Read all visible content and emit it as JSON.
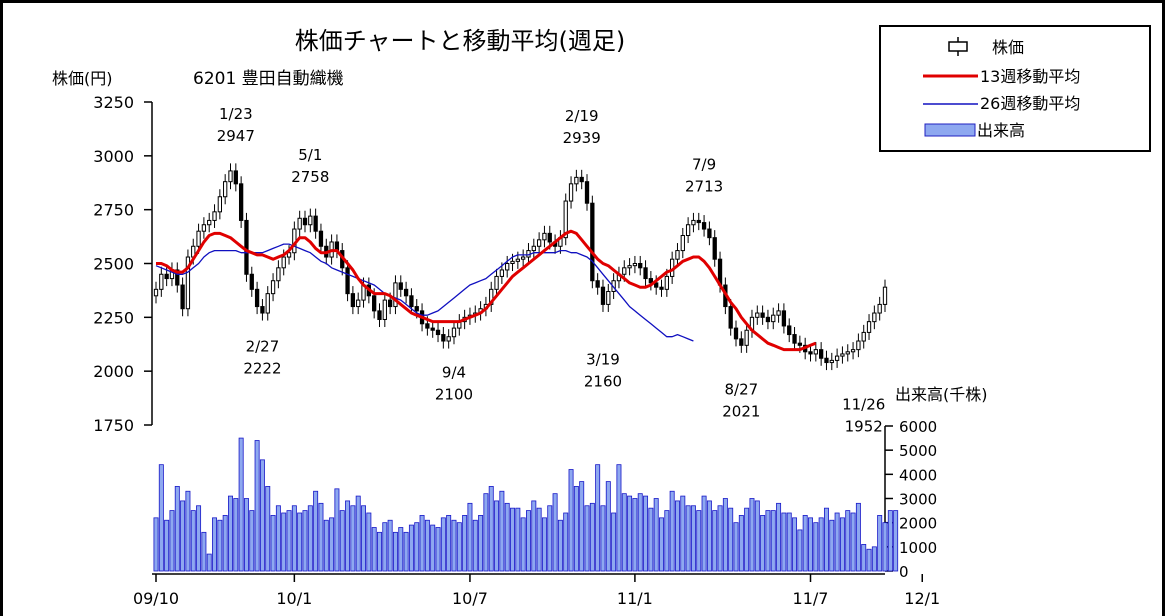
{
  "chart_data": {
    "type": "candlestick",
    "title": "株価チャートと移動平均(週足)",
    "subtitle": "6201 豊田自動織機",
    "price_axis": {
      "label": "株価(円)",
      "min": 1750,
      "max": 3250,
      "ticks": [
        3250,
        3000,
        2750,
        2500,
        2250,
        2000,
        1750
      ]
    },
    "volume_axis": {
      "label": "出来高(千株)",
      "min": 0,
      "max": 6000,
      "ticks": [
        6000,
        5000,
        4000,
        3000,
        2000,
        1000,
        0
      ]
    },
    "x_tick_labels": [
      "09/10",
      "10/1",
      "10/7",
      "11/1",
      "11/7",
      "12/1"
    ],
    "x_tick_weeks": [
      0,
      26,
      59,
      90,
      123,
      144
    ],
    "legend": {
      "position": "top-right",
      "items": [
        {
          "key": "candle",
          "label": "株価",
          "color": "#000000"
        },
        {
          "key": "ma13",
          "label": "13週移動平均",
          "color": "#e00000"
        },
        {
          "key": "ma26",
          "label": "26週移動平均",
          "color": "#1010c0"
        },
        {
          "key": "volume",
          "label": "出来高",
          "color": "#8ea8f0"
        }
      ]
    },
    "annotations": [
      {
        "date": "1/23",
        "price": "2947",
        "week": 15,
        "pos": "above"
      },
      {
        "date": "2/27",
        "price": "2222",
        "week": 20,
        "pos": "below"
      },
      {
        "date": "5/1",
        "price": "2758",
        "week": 29,
        "pos": "above"
      },
      {
        "date": "9/4",
        "price": "2100",
        "week": 56,
        "pos": "below"
      },
      {
        "date": "2/19",
        "price": "2939",
        "week": 80,
        "pos": "above"
      },
      {
        "date": "3/19",
        "price": "2160",
        "week": 84,
        "pos": "below"
      },
      {
        "date": "7/9",
        "price": "2713",
        "week": 103,
        "pos": "above"
      },
      {
        "date": "8/27",
        "price": "2021",
        "week": 110,
        "pos": "below"
      },
      {
        "date": "11/26",
        "price": "1952",
        "week": 133,
        "pos": "below"
      }
    ],
    "close": [
      2380,
      2450,
      2430,
      2470,
      2400,
      2290,
      2530,
      2580,
      2650,
      2680,
      2700,
      2740,
      2810,
      2880,
      2930,
      2870,
      2700,
      2450,
      2380,
      2300,
      2270,
      2360,
      2420,
      2480,
      2530,
      2550,
      2660,
      2710,
      2680,
      2720,
      2650,
      2580,
      2530,
      2600,
      2560,
      2480,
      2360,
      2300,
      2330,
      2400,
      2350,
      2280,
      2240,
      2330,
      2300,
      2410,
      2380,
      2350,
      2300,
      2280,
      2220,
      2200,
      2190,
      2170,
      2140,
      2160,
      2200,
      2230,
      2250,
      2260,
      2270,
      2290,
      2310,
      2380,
      2440,
      2470,
      2500,
      2510,
      2520,
      2530,
      2560,
      2580,
      2610,
      2640,
      2600,
      2580,
      2620,
      2790,
      2870,
      2900,
      2880,
      2780,
      2420,
      2390,
      2310,
      2370,
      2420,
      2450,
      2480,
      2490,
      2500,
      2480,
      2430,
      2410,
      2390,
      2380,
      2440,
      2520,
      2560,
      2630,
      2680,
      2700,
      2690,
      2660,
      2620,
      2520,
      2400,
      2300,
      2200,
      2150,
      2120,
      2190,
      2250,
      2270,
      2250,
      2230,
      2260,
      2280,
      2210,
      2170,
      2130,
      2120,
      2090,
      2080,
      2100,
      2060,
      2040,
      2050,
      2070,
      2080,
      2090,
      2100,
      2140,
      2180,
      2230,
      2270,
      2310,
      2390
    ],
    "volume_k": [
      2200,
      4400,
      2100,
      2500,
      3500,
      2900,
      3300,
      2500,
      2700,
      1600,
      700,
      2200,
      2100,
      2300,
      3100,
      3000,
      5500,
      3000,
      2500,
      5400,
      4600,
      3500,
      2300,
      2700,
      2400,
      2500,
      2700,
      2400,
      2500,
      2700,
      3300,
      2800,
      2100,
      2200,
      3400,
      2500,
      2900,
      2700,
      3100,
      2700,
      2400,
      1800,
      1600,
      2000,
      2100,
      1600,
      1800,
      1600,
      1900,
      2000,
      2300,
      2100,
      1900,
      1800,
      2200,
      2300,
      2100,
      2000,
      2300,
      2800,
      2100,
      2300,
      3200,
      3500,
      2900,
      3300,
      2800,
      2600,
      2600,
      2200,
      2500,
      2900,
      2600,
      2200,
      2700,
      3200,
      2100,
      2400,
      4200,
      3500,
      3700,
      2700,
      2800,
      4400,
      2700,
      3700,
      2400,
      4400,
      3200,
      3100,
      3000,
      3200,
      3100,
      2600,
      3000,
      2200,
      2500,
      3300,
      2900,
      3100,
      2700,
      2700,
      2500,
      3100,
      2900,
      2500,
      2700,
      3000,
      2600,
      2000,
      2300,
      2600,
      3000,
      2900,
      2300,
      2500,
      2500,
      2800,
      2400,
      2400,
      2200,
      1700,
      2300,
      2200,
      2000,
      2200,
      2600,
      2100,
      2400,
      2200,
      2500,
      2400,
      2800,
      1100,
      900,
      1000,
      2300,
      2000,
      2500,
      2500
    ],
    "ma13": [
      2500,
      2500,
      2490,
      2470,
      2460,
      2460,
      2480,
      2520,
      2560,
      2600,
      2630,
      2640,
      2640,
      2630,
      2620,
      2600,
      2580,
      2560,
      2550,
      2540,
      2540,
      2530,
      2520,
      2530,
      2540,
      2560,
      2590,
      2620,
      2620,
      2600,
      2570,
      2550,
      2550,
      2560,
      2560,
      2530,
      2500,
      2470,
      2430,
      2400,
      2380,
      2360,
      2360,
      2360,
      2350,
      2330,
      2310,
      2290,
      2270,
      2260,
      2250,
      2240,
      2230,
      2230,
      2230,
      2230,
      2230,
      2230,
      2240,
      2250,
      2260,
      2270,
      2290,
      2320,
      2350,
      2380,
      2410,
      2440,
      2460,
      2480,
      2500,
      2520,
      2540,
      2560,
      2580,
      2600,
      2620,
      2640,
      2650,
      2640,
      2610,
      2580,
      2550,
      2520,
      2500,
      2490,
      2470,
      2450,
      2430,
      2410,
      2400,
      2390,
      2390,
      2400,
      2420,
      2440,
      2460,
      2470,
      2490,
      2510,
      2520,
      2530,
      2530,
      2510,
      2480,
      2440,
      2400,
      2360,
      2320,
      2290,
      2250,
      2220,
      2190,
      2170,
      2150,
      2130,
      2120,
      2110,
      2100,
      2100,
      2100,
      2100,
      2110,
      2120,
      2130
    ],
    "ma26": [
      2490,
      2480,
      2470,
      2460,
      2450,
      2450,
      2460,
      2480,
      2500,
      2530,
      2550,
      2560,
      2560,
      2560,
      2560,
      2560,
      2550,
      2550,
      2550,
      2550,
      2550,
      2560,
      2570,
      2580,
      2590,
      2590,
      2580,
      2570,
      2560,
      2550,
      2530,
      2510,
      2500,
      2480,
      2470,
      2460,
      2450,
      2440,
      2430,
      2420,
      2410,
      2400,
      2380,
      2360,
      2350,
      2340,
      2330,
      2310,
      2290,
      2270,
      2260,
      2260,
      2270,
      2280,
      2300,
      2320,
      2340,
      2360,
      2380,
      2400,
      2410,
      2420,
      2430,
      2450,
      2470,
      2490,
      2510,
      2530,
      2540,
      2540,
      2540,
      2550,
      2550,
      2550,
      2550,
      2550,
      2560,
      2560,
      2550,
      2550,
      2540,
      2530,
      2510,
      2480,
      2450,
      2420,
      2390,
      2360,
      2330,
      2300,
      2280,
      2260,
      2240,
      2220,
      2200,
      2180,
      2160,
      2160,
      2170,
      2160,
      2150,
      2140
    ]
  }
}
